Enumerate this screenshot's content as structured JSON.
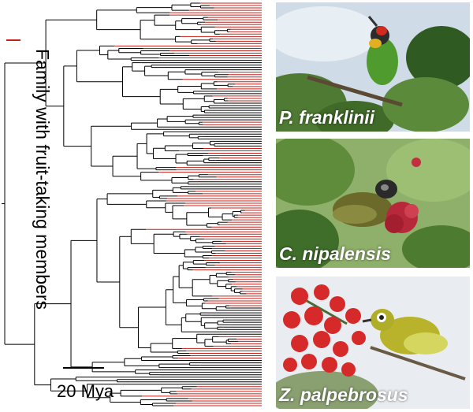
{
  "legend": {
    "text": "Family with fruit-taking members",
    "color": "#c8201a"
  },
  "scale": {
    "label": "20 Mya"
  },
  "tree": {
    "highlight_color": "#c8201a",
    "base_color": "#000000"
  },
  "photos": [
    {
      "caption": "P. franklinii"
    },
    {
      "caption": "C. nipalensis"
    },
    {
      "caption": "Z. palpebrosus"
    }
  ]
}
